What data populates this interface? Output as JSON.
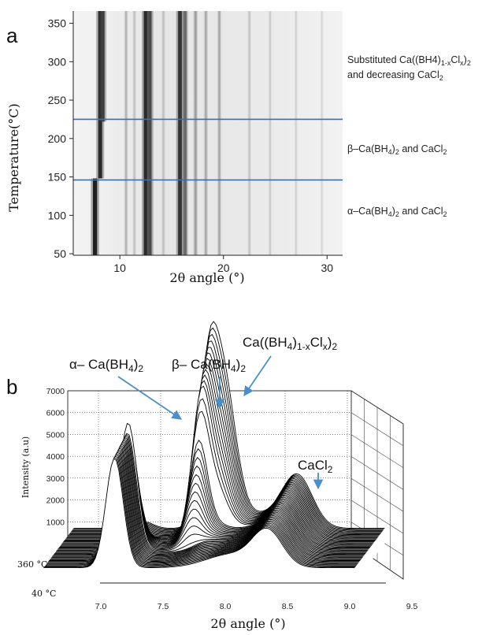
{
  "panels": {
    "a_label": "a",
    "b_label": "b"
  },
  "chart_data": [
    {
      "type": "heatmap",
      "title": "",
      "xlabel": "2θ angle (°)",
      "ylabel": "Temperature(°C)",
      "xlim": [
        5.5,
        31.5
      ],
      "ylim": [
        48,
        366
      ],
      "x_ticks": [
        10,
        20,
        30
      ],
      "y_ticks": [
        50,
        100,
        150,
        200,
        250,
        300,
        350
      ],
      "lines": [
        {
          "x": 7.6,
          "y_from": 48,
          "y_to": 148,
          "intensity": 0.95
        },
        {
          "x": 8.1,
          "y_from": 148,
          "y_to": 366,
          "intensity": 0.9
        },
        {
          "x": 8.35,
          "y_from": 222,
          "y_to": 366,
          "intensity": 0.8
        },
        {
          "x": 12.5,
          "y_from": 48,
          "y_to": 366,
          "intensity": 0.9
        },
        {
          "x": 12.9,
          "y_from": 48,
          "y_to": 366,
          "intensity": 0.75
        },
        {
          "x": 15.8,
          "y_from": 48,
          "y_to": 366,
          "intensity": 0.85
        },
        {
          "x": 16.3,
          "y_from": 48,
          "y_to": 366,
          "intensity": 0.6
        },
        {
          "x": 17.3,
          "y_from": 48,
          "y_to": 366,
          "intensity": 0.35
        },
        {
          "x": 18.3,
          "y_from": 48,
          "y_to": 366,
          "intensity": 0.3
        },
        {
          "x": 19.6,
          "y_from": 48,
          "y_to": 366,
          "intensity": 0.3
        },
        {
          "x": 10.6,
          "y_from": 48,
          "y_to": 366,
          "intensity": 0.25
        },
        {
          "x": 11.4,
          "y_from": 48,
          "y_to": 366,
          "intensity": 0.2
        },
        {
          "x": 14.2,
          "y_from": 48,
          "y_to": 366,
          "intensity": 0.2
        },
        {
          "x": 22.5,
          "y_from": 48,
          "y_to": 366,
          "intensity": 0.18
        },
        {
          "x": 24.5,
          "y_from": 48,
          "y_to": 366,
          "intensity": 0.15
        },
        {
          "x": 27.0,
          "y_from": 48,
          "y_to": 366,
          "intensity": 0.12
        },
        {
          "x": 29.5,
          "y_from": 48,
          "y_to": 366,
          "intensity": 0.1
        }
      ],
      "boundaries": [
        {
          "temperature": 225,
          "color": "#3a6fb0"
        },
        {
          "temperature": 146,
          "color": "#3a6fb0"
        }
      ],
      "regions": [
        {
          "label_main": "Substituted Ca((BH4)",
          "label_sub": "1-x",
          "label_mid": "Cl",
          "label_sub2": "x",
          "label_end": ")",
          "label_sub3": "2",
          "label_line2": "and decreasing CaCl",
          "label_line2_sub": "2"
        },
        {
          "label_main": "β–Ca(BH",
          "label_sub": "4",
          "label_mid": ")",
          "label_sub2": "2",
          "label_end": " and CaCl",
          "label_sub3": "2"
        },
        {
          "label_main": "α–Ca(BH",
          "label_sub": "4",
          "label_mid": ")",
          "label_sub2": "2",
          "label_end": "  and CaCl",
          "label_sub3": "2"
        }
      ]
    },
    {
      "type": "line",
      "title": "",
      "xlabel": "2θ angle (°)",
      "ylabel": "Intensity (a.u)",
      "xlim": [
        6.8,
        9.5
      ],
      "ylim": [
        0,
        7000
      ],
      "x_ticks": [
        "7.0",
        "7.5",
        "8.0",
        "8.5",
        "9.0",
        "9.5"
      ],
      "y_ticks": [
        "1000",
        "2000",
        "3000",
        "4000",
        "5000",
        "6000",
        "7000"
      ],
      "z_labels": [
        "360 °C",
        "40 °C"
      ],
      "peaks": [
        {
          "name": "α- Ca(BH4)2",
          "center": 7.4,
          "height": 5900
        },
        {
          "name": "β- Ca(BH4)2",
          "center": 7.88,
          "height": 5300
        },
        {
          "name": "Ca((BH4)1-xClx)2",
          "center": 8.0,
          "height": 6700
        },
        {
          "name": "CaCl2",
          "center": 8.6,
          "height": 3200
        }
      ],
      "annotations": [
        {
          "main": "α– Ca(BH",
          "sub": "4",
          "end": ")",
          "sub2": "2"
        },
        {
          "main": "β– Ca(BH",
          "sub": "4",
          "end": ")",
          "sub2": "2"
        },
        {
          "main": "Ca((BH",
          "sub": "4",
          "end": ")",
          "sub_b": "1-x",
          "mid": "Cl",
          "sub_c": "x",
          "end2": ")",
          "sub2": "2"
        },
        {
          "main": "CaCl",
          "sub": "2"
        }
      ],
      "curve_count": 45,
      "line_color": "#000000",
      "arrow_color": "#4a8fc8"
    }
  ]
}
